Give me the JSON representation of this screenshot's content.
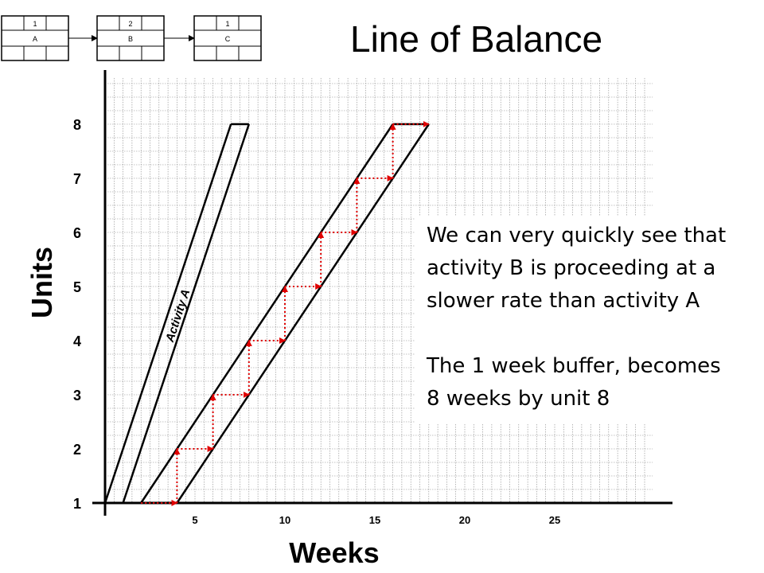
{
  "title": "Line of Balance",
  "network": {
    "nodes": [
      {
        "top": "1",
        "label": "A"
      },
      {
        "top": "2",
        "label": "B"
      },
      {
        "top": "1",
        "label": "C"
      }
    ]
  },
  "note": {
    "line1": "We can very quickly see that activity B is proceeding at a slower rate than activity A",
    "line2": "The 1 week buffer, becomes 8 weeks by unit 8"
  },
  "colors": {
    "arrow": "#e00000",
    "line": "#000000",
    "grid": "#888888"
  },
  "chart_data": {
    "type": "line",
    "title": "Line of Balance",
    "xlabel": "Weeks",
    "ylabel": "Units",
    "xlim": [
      0,
      30
    ],
    "ylim": [
      1,
      8
    ],
    "xticks": [
      5,
      10,
      15,
      20,
      25
    ],
    "yticks": [
      1,
      2,
      3,
      4,
      5,
      6,
      7,
      8
    ],
    "grid": true,
    "series": [
      {
        "name": "Activity A",
        "start": [
          [
            0,
            1
          ],
          [
            7,
            8
          ]
        ],
        "finish": [
          [
            1,
            1
          ],
          [
            8,
            8
          ]
        ]
      },
      {
        "name": "",
        "start": [
          [
            2,
            1
          ],
          [
            16,
            8
          ]
        ],
        "finish": [
          [
            4,
            1
          ],
          [
            18,
            8
          ]
        ]
      }
    ],
    "steps": [
      [
        2,
        1
      ],
      [
        4,
        1
      ],
      [
        4,
        2
      ],
      [
        6,
        2
      ],
      [
        6,
        3
      ],
      [
        8,
        3
      ],
      [
        8,
        4
      ],
      [
        10,
        4
      ],
      [
        10,
        5
      ],
      [
        12,
        5
      ],
      [
        12,
        6
      ],
      [
        14,
        6
      ],
      [
        14,
        7
      ],
      [
        16,
        7
      ],
      [
        16,
        8
      ],
      [
        18,
        8
      ]
    ],
    "annotations": [
      "Activity A"
    ]
  }
}
